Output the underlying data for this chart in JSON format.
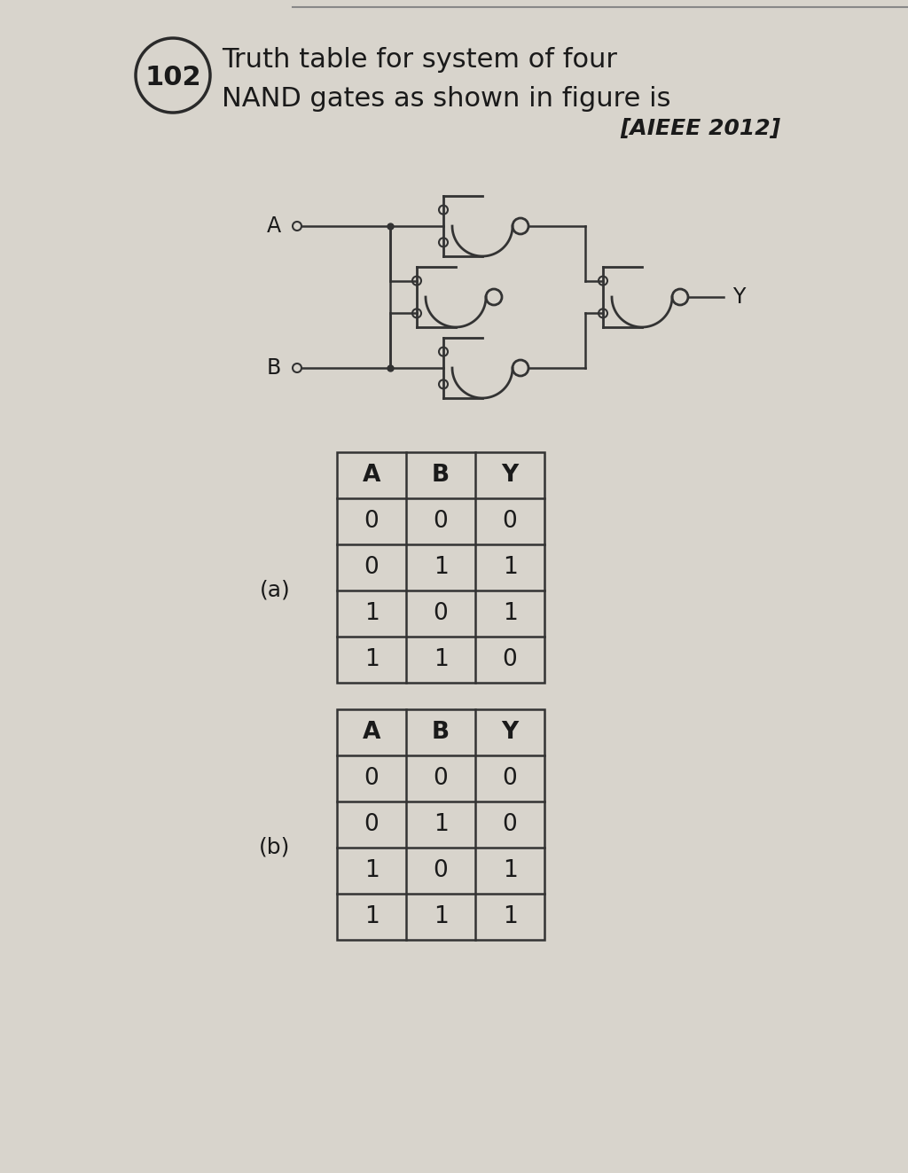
{
  "background_color": "#d8d4cc",
  "title_number": "102",
  "title_text1": "Truth table for system of four",
  "title_text2": "NAND gates as shown in figure is",
  "title_ref": "[AIEEE 2012]",
  "table_a_headers": [
    "A",
    "B",
    "Y"
  ],
  "table_a_rows": [
    [
      "0",
      "0",
      "0"
    ],
    [
      "0",
      "1",
      "1"
    ],
    [
      "1",
      "0",
      "1"
    ],
    [
      "1",
      "1",
      "0"
    ]
  ],
  "table_b_headers": [
    "A",
    "B",
    "Y"
  ],
  "table_b_rows": [
    [
      "0",
      "0",
      "0"
    ],
    [
      "0",
      "1",
      "0"
    ],
    [
      "1",
      "0",
      "1"
    ],
    [
      "1",
      "1",
      "1"
    ]
  ],
  "label_a": "(a)",
  "label_b": "(b)",
  "line_color": "#333333",
  "text_color": "#1a1a1a"
}
